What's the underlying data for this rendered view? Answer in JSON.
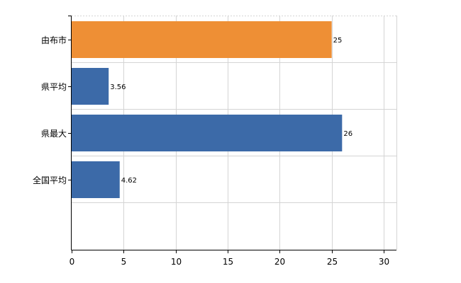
{
  "chart_data": {
    "type": "bar",
    "orientation": "horizontal",
    "categories": [
      "由布市",
      "県平均",
      "県最大",
      "全国平均"
    ],
    "values": [
      25,
      3.56,
      26,
      4.62
    ],
    "value_labels": [
      "25",
      "3.56",
      "26",
      "4.62"
    ],
    "bar_colors": [
      "#ee8f35",
      "#3c6aa8",
      "#3c6aa8",
      "#3c6aa8"
    ],
    "xlim": [
      0,
      30
    ],
    "xticks": [
      0,
      5,
      10,
      15,
      20,
      25,
      30
    ],
    "grid": true,
    "title": "",
    "xlabel": "",
    "ylabel": ""
  }
}
